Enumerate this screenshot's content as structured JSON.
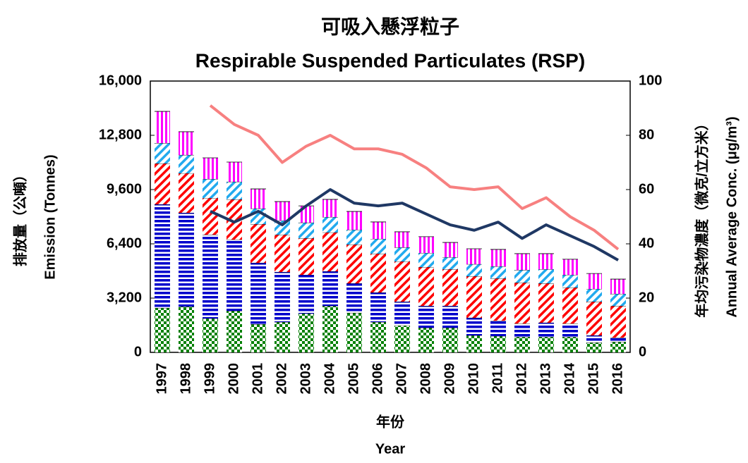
{
  "chart_data": {
    "type": "bar",
    "title": "可吸入懸浮粒子",
    "subtitle": "Respirable Suspended Particulates (RSP)",
    "x_label": [
      "年份",
      "Year"
    ],
    "y_label": [
      "排放量（公噸）",
      "Emission (Tonnes)"
    ],
    "y2_label": [
      "年均污染物濃度（微克/立方米）",
      "Annual Average Conc. (μg/m³)"
    ],
    "categories": [
      "1997",
      "1998",
      "1999",
      "2000",
      "2001",
      "2002",
      "2003",
      "2004",
      "2005",
      "2006",
      "2007",
      "2008",
      "2009",
      "2010",
      "2011",
      "2012",
      "2013",
      "2014",
      "2015",
      "2016"
    ],
    "ylim": [
      0,
      16000
    ],
    "yticks": [
      0,
      {
        "value": 3200,
        "label": "3,200"
      },
      {
        "value": 6400,
        "label": "6,400"
      },
      {
        "value": 9600,
        "label": "9,600"
      },
      {
        "value": 12800,
        "label": "12,800"
      },
      {
        "value": 16000,
        "label": "16,000"
      }
    ],
    "y2lim": [
      0,
      100
    ],
    "y2ticks": [
      0,
      20,
      40,
      60,
      80,
      100
    ],
    "stacked": true,
    "series": [
      {
        "color": "#008000",
        "pattern": "checker",
        "values": [
          2620,
          2700,
          2000,
          2450,
          1660,
          1790,
          2290,
          2740,
          2330,
          1790,
          1580,
          1450,
          1450,
          1000,
          960,
          910,
          910,
          910,
          580,
          620
        ]
      },
      {
        "color": "#0000cc",
        "pattern": "horizontal",
        "values": [
          6110,
          5530,
          4940,
          4200,
          3620,
          2950,
          2280,
          2040,
          1740,
          1740,
          1410,
          1290,
          1290,
          1040,
          910,
          790,
          840,
          790,
          420,
          250
        ]
      },
      {
        "color": "#ff0000",
        "pattern": "diagonal",
        "values": [
          2410,
          2330,
          2160,
          2370,
          2280,
          2200,
          2160,
          2290,
          2290,
          2290,
          2370,
          2290,
          2160,
          2450,
          2490,
          2410,
          2320,
          2120,
          1990,
          1870
        ]
      },
      {
        "color": "#22aaee",
        "pattern": "diagonal",
        "values": [
          1200,
          1080,
          1120,
          1040,
          920,
          830,
          920,
          910,
          870,
          870,
          830,
          830,
          710,
          710,
          710,
          750,
          830,
          750,
          750,
          710
        ]
      },
      {
        "color": "#ff00ff",
        "pattern": "vertical",
        "values": [
          1870,
          1370,
          1250,
          1160,
          1160,
          1120,
          990,
          1040,
          1080,
          1000,
          920,
          960,
          870,
          910,
          1000,
          960,
          920,
          920,
          910,
          870
        ]
      },
      {
        "type": "line",
        "axis": "y2",
        "color": "#f78080",
        "values": [
          null,
          null,
          91,
          84,
          80,
          70,
          76,
          80,
          75,
          75,
          73,
          68,
          61,
          60,
          61,
          53,
          57,
          50,
          45,
          38
        ]
      },
      {
        "type": "line",
        "axis": "y2",
        "color": "#1f3864",
        "values": [
          null,
          null,
          52,
          48,
          52,
          47,
          54,
          60,
          55,
          54,
          55,
          51,
          47,
          45,
          48,
          42,
          47,
          43,
          39,
          34
        ]
      }
    ]
  }
}
